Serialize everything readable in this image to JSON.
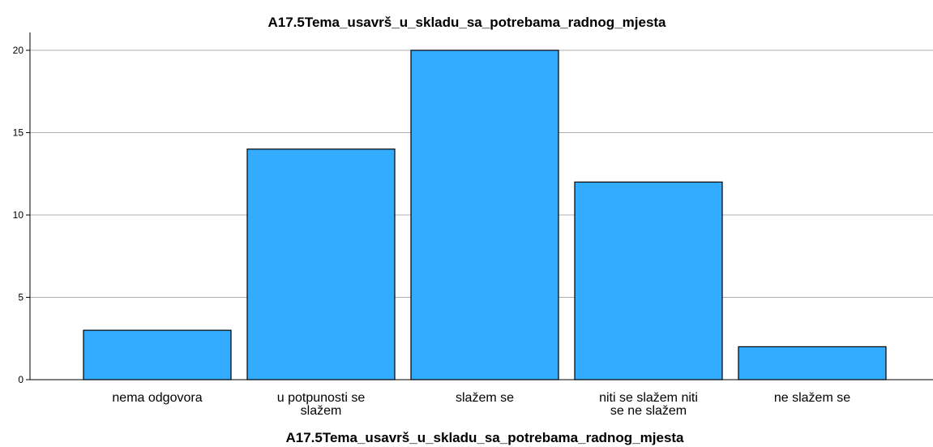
{
  "chart_data": {
    "type": "bar",
    "title": "A17.5Tema_usavrš_u_skladu_sa_potrebama_radnog_mjesta",
    "xlabel": "A17.5Tema_usavrš_u_skladu_sa_potrebama_radnog_mjesta",
    "ylabel": "",
    "categories": [
      [
        "nema odgovora"
      ],
      [
        "u potpunosti se",
        "slažem"
      ],
      [
        "slažem se"
      ],
      [
        "niti se slažem niti",
        "se ne slažem"
      ],
      [
        "ne slažem se"
      ]
    ],
    "values": [
      3,
      14,
      20,
      12,
      2
    ],
    "ylim": [
      0,
      21
    ],
    "yticks": [
      "0",
      "5",
      "10",
      "15",
      "20"
    ],
    "grid": true,
    "colors": {
      "bar": "#33acff",
      "bar_border": "#000000",
      "grid": "#b0b0b0",
      "axis": "#000000"
    }
  }
}
